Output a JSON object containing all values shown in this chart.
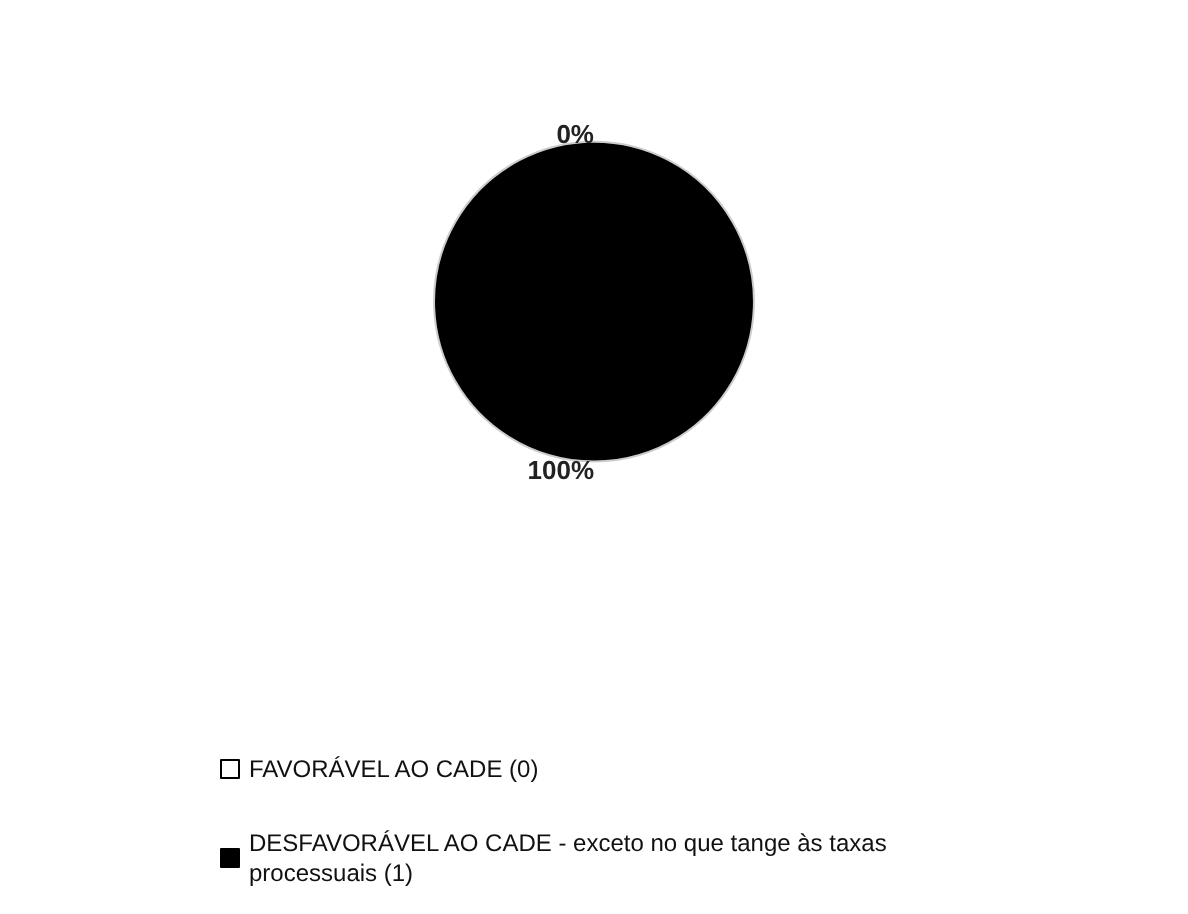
{
  "chart_data": {
    "type": "pie",
    "categories": [
      "FAVORÁVEL AO CADE (0)",
      "DESFAVORÁVEL AO CADE - exceto no que tange às taxas processuais (1)"
    ],
    "values": [
      0,
      100
    ],
    "colors": [
      "#ffffff",
      "#000000"
    ],
    "value_labels": [
      "0%",
      "100%"
    ],
    "legend": "bottom left"
  }
}
